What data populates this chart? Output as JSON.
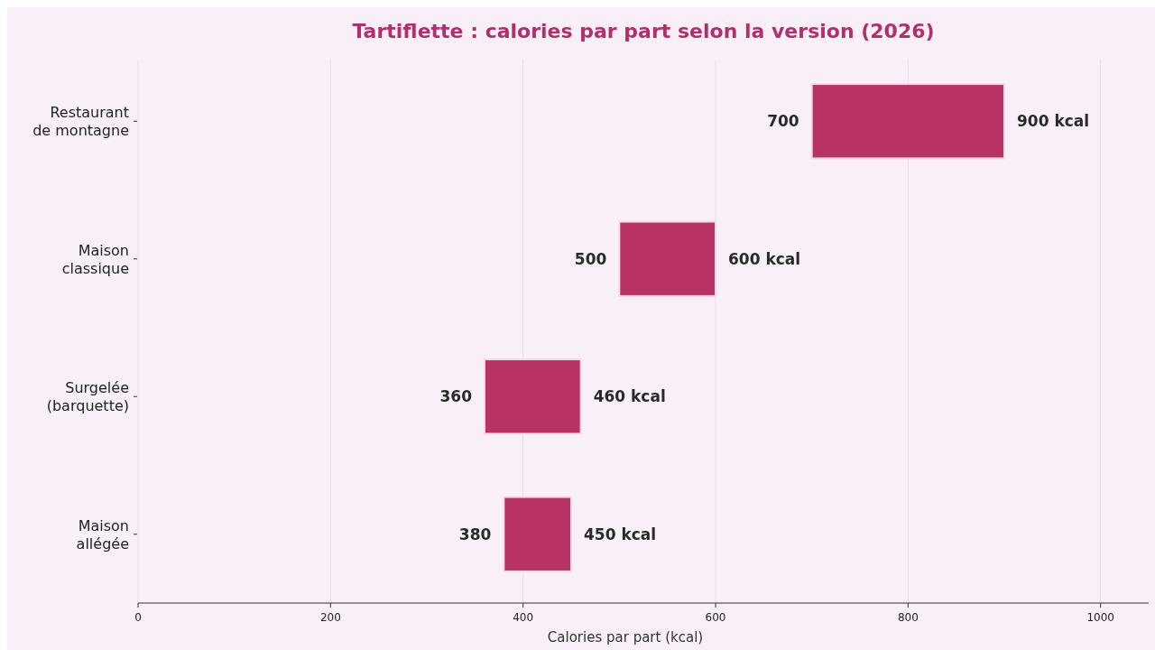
{
  "chart_data": {
    "type": "bar",
    "orientation": "horizontal",
    "title": "Tartiflette : calories par part selon la version (2026)",
    "xlabel": "Calories par part (kcal)",
    "categories": [
      "Restaurant\nde montagne",
      "Maison\nclassique",
      "Surgelée\n(barquette)",
      "Maison\nallégée"
    ],
    "base": [
      700,
      500,
      360,
      380
    ],
    "values": [
      200,
      100,
      100,
      70
    ],
    "color": "#b83266",
    "xlim": [
      0,
      1050
    ],
    "xticks": [
      0,
      200,
      400,
      600,
      800,
      1000
    ],
    "grid": "x",
    "annotations": [
      {
        "text": "700",
        "x": 700,
        "y": "Restaurant\nde montagne"
      },
      {
        "text": "900 kcal",
        "x": 900,
        "y": "Restaurant\nde montagne"
      },
      {
        "text": "500",
        "x": 500,
        "y": "Maison\nclassique"
      },
      {
        "text": "600 kcal",
        "x": 600,
        "y": "Maison\nclassique"
      },
      {
        "text": "360",
        "x": 360,
        "y": "Surgelée\n(barquette)"
      },
      {
        "text": "460 kcal",
        "x": 460,
        "y": "Surgelée\n(barquette)"
      },
      {
        "text": "380",
        "x": 380,
        "y": "Maison\nallégée"
      },
      {
        "text": "450 kcal",
        "x": 450,
        "y": "Maison\nallégée"
      }
    ]
  }
}
